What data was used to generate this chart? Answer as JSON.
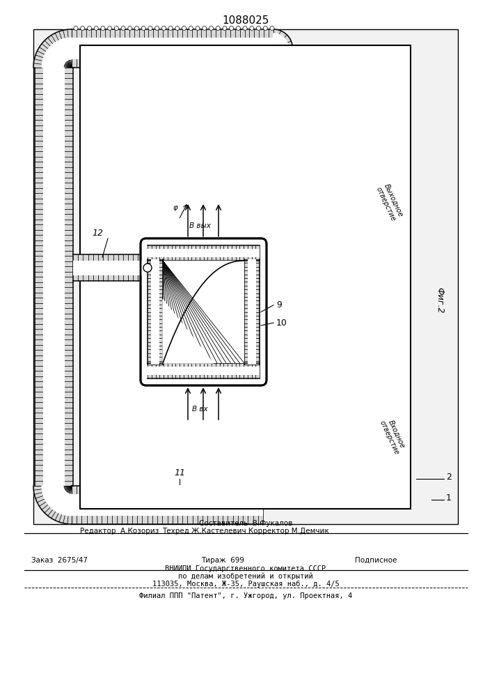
{
  "patent_number": "1088025",
  "fig_label": "Фиг.2",
  "label_vvikh": "Ввых",
  "label_vvkh": "Ввх",
  "label_phi": "φ",
  "label_out": "Выходное\nотверстие",
  "label_in": "Входное\nотверстие",
  "label_9": "9",
  "label_10": "10",
  "label_11": "11",
  "label_12": "12",
  "label_1": "1",
  "label_2": "2",
  "footer_editor": "Редактор  А.Козориз",
  "footer_compiler": "Составитель  В.Фукалов",
  "footer_techred": "Техред Ж.Кастелевич Корректор М.Демчик",
  "footer_zagaz": "Заказ  2675/47",
  "footer_tiraz": "Тираж  699",
  "footer_podp": "Подписное",
  "footer_org1": "ВНИИПИ Государственного комитета СССР",
  "footer_org2": "по делам изобретений и открытий",
  "footer_org3": "113035, Москва, Ж-35, Раушская наб., д. 4/5",
  "footer_filial": "Филиал ППП \"Патент\", г. Ужгород, ул. Проектная, 4"
}
